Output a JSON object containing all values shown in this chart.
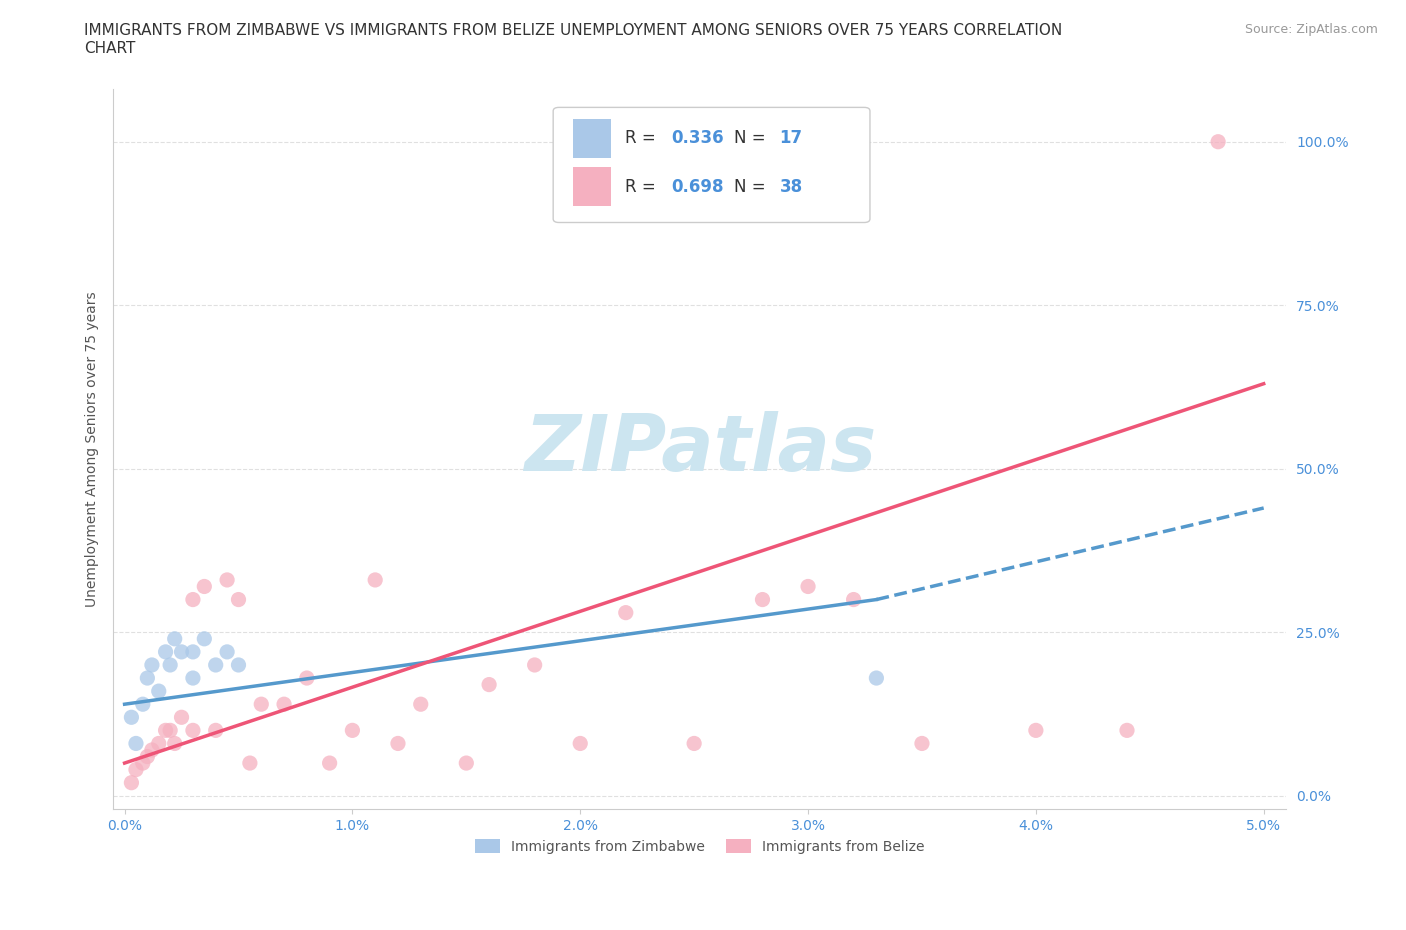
{
  "title": "IMMIGRANTS FROM ZIMBABWE VS IMMIGRANTS FROM BELIZE UNEMPLOYMENT AMONG SENIORS OVER 75 YEARS CORRELATION\nCHART",
  "source_text": "Source: ZipAtlas.com",
  "ylabel": "Unemployment Among Seniors over 75 years",
  "xlim": [
    -0.0005,
    0.051
  ],
  "ylim": [
    -0.02,
    1.08
  ],
  "xticks": [
    0.0,
    0.01,
    0.02,
    0.03,
    0.04,
    0.05
  ],
  "xticklabels": [
    "0.0%",
    "1.0%",
    "2.0%",
    "3.0%",
    "4.0%",
    "5.0%"
  ],
  "yticks": [
    0.0,
    0.25,
    0.5,
    0.75,
    1.0
  ],
  "yticklabels": [
    "0.0%",
    "25.0%",
    "50.0%",
    "75.0%",
    "100.0%"
  ],
  "grid_color": "#e0e0e0",
  "background_color": "#ffffff",
  "watermark": "ZIPatlas",
  "watermark_color": "#cce5f0",
  "color_zimbabwe": "#aac8e8",
  "color_belize": "#f5b0c0",
  "line_color_zimbabwe": "#5599cc",
  "line_color_belize": "#ee5577",
  "zimbabwe_scatter_x": [
    0.0003,
    0.0005,
    0.0008,
    0.001,
    0.0012,
    0.0015,
    0.0018,
    0.002,
    0.0022,
    0.0025,
    0.003,
    0.003,
    0.0035,
    0.004,
    0.0045,
    0.005,
    0.033
  ],
  "zimbabwe_scatter_y": [
    0.12,
    0.08,
    0.14,
    0.18,
    0.2,
    0.16,
    0.22,
    0.2,
    0.24,
    0.22,
    0.22,
    0.18,
    0.24,
    0.2,
    0.22,
    0.2,
    0.18
  ],
  "belize_scatter_x": [
    0.0003,
    0.0005,
    0.0008,
    0.001,
    0.0012,
    0.0015,
    0.0018,
    0.002,
    0.0022,
    0.0025,
    0.003,
    0.003,
    0.0035,
    0.004,
    0.0045,
    0.005,
    0.0055,
    0.006,
    0.007,
    0.008,
    0.009,
    0.01,
    0.011,
    0.012,
    0.013,
    0.015,
    0.016,
    0.018,
    0.02,
    0.022,
    0.025,
    0.028,
    0.03,
    0.032,
    0.035,
    0.04,
    0.044,
    0.048
  ],
  "belize_scatter_y": [
    0.02,
    0.04,
    0.05,
    0.06,
    0.07,
    0.08,
    0.1,
    0.1,
    0.08,
    0.12,
    0.1,
    0.3,
    0.32,
    0.1,
    0.33,
    0.3,
    0.05,
    0.14,
    0.14,
    0.18,
    0.05,
    0.1,
    0.33,
    0.08,
    0.14,
    0.05,
    0.17,
    0.2,
    0.08,
    0.28,
    0.08,
    0.3,
    0.32,
    0.3,
    0.08,
    0.1,
    0.1,
    1.0
  ],
  "zimbabwe_line_x": [
    0.0,
    0.033
  ],
  "zimbabwe_line_y": [
    0.14,
    0.3
  ],
  "zimbabwe_ext_line_x": [
    0.033,
    0.05
  ],
  "zimbabwe_ext_line_y": [
    0.3,
    0.44
  ],
  "belize_line_x": [
    0.0,
    0.05
  ],
  "belize_line_y": [
    0.05,
    0.63
  ],
  "title_fontsize": 11,
  "axis_label_fontsize": 10,
  "tick_fontsize": 10,
  "legend_fontsize": 12
}
